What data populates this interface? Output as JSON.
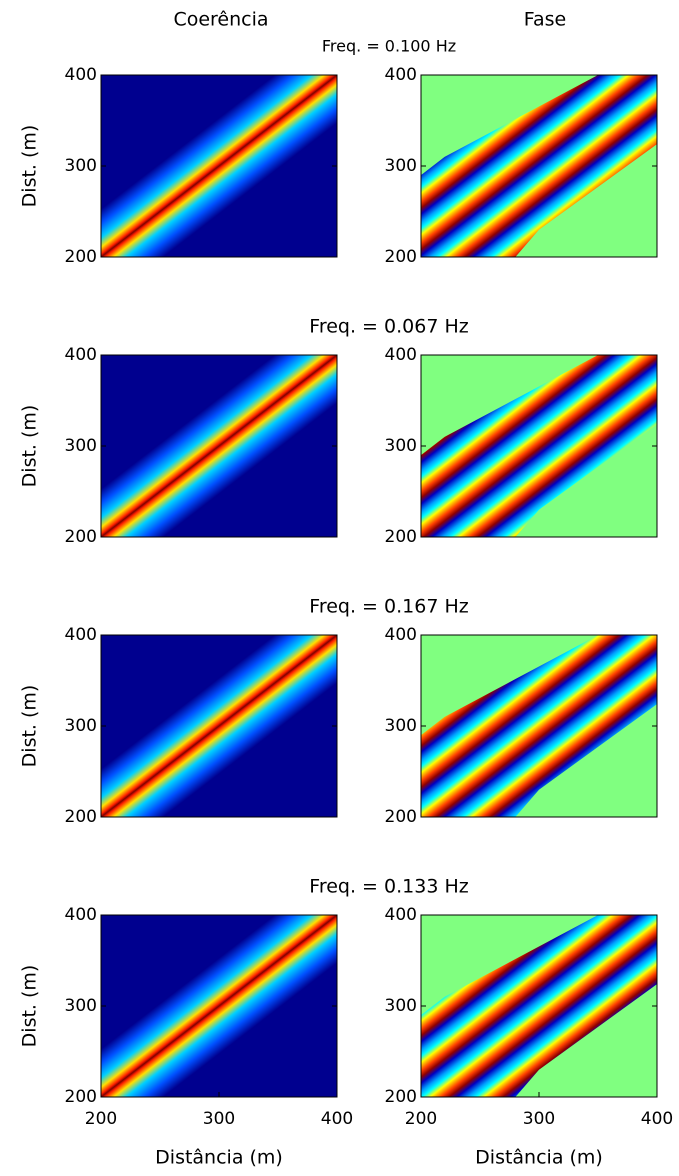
{
  "column_titles": [
    "Coerência",
    "Fase"
  ],
  "row_titles": [
    "Freq. = 0.100 Hz",
    "Freq. = 0.067 Hz",
    "Freq. = 0.167 Hz",
    "Freq. = 0.133 Hz"
  ],
  "chart_data": [
    {
      "type": "heatmap",
      "panel": "coherence",
      "ylabel": "Dist. (m)",
      "xlim": [
        200,
        400
      ],
      "ylim": [
        200,
        400
      ],
      "yticks": [
        200,
        300,
        400
      ]
    },
    {
      "type": "heatmap",
      "panel": "phase",
      "xlim": [
        200,
        400
      ],
      "ylim": [
        200,
        400
      ],
      "yticks": [
        200,
        300,
        400
      ]
    },
    {
      "type": "heatmap",
      "panel": "coherence",
      "ylabel": "Dist. (m)",
      "xlim": [
        200,
        400
      ],
      "ylim": [
        200,
        400
      ],
      "yticks": [
        200,
        300,
        400
      ]
    },
    {
      "type": "heatmap",
      "panel": "phase",
      "xlim": [
        200,
        400
      ],
      "ylim": [
        200,
        400
      ],
      "yticks": [
        200,
        300,
        400
      ]
    },
    {
      "type": "heatmap",
      "panel": "coherence",
      "ylabel": "Dist. (m)",
      "xlim": [
        200,
        400
      ],
      "ylim": [
        200,
        400
      ],
      "yticks": [
        200,
        300,
        400
      ]
    },
    {
      "type": "heatmap",
      "panel": "phase",
      "xlim": [
        200,
        400
      ],
      "ylim": [
        200,
        400
      ],
      "yticks": [
        200,
        300,
        400
      ]
    },
    {
      "type": "heatmap",
      "panel": "coherence",
      "ylabel": "Dist. (m)",
      "xlabel": "Distância (m)",
      "xlim": [
        200,
        400
      ],
      "ylim": [
        200,
        400
      ],
      "yticks": [
        200,
        300,
        400
      ],
      "xticks": [
        200,
        300,
        400
      ]
    },
    {
      "type": "heatmap",
      "panel": "phase",
      "xlabel": "Distância (m)",
      "xlim": [
        200,
        400
      ],
      "ylim": [
        200,
        400
      ],
      "yticks": [
        200,
        300,
        400
      ],
      "xticks": [
        200,
        300,
        400
      ]
    }
  ]
}
